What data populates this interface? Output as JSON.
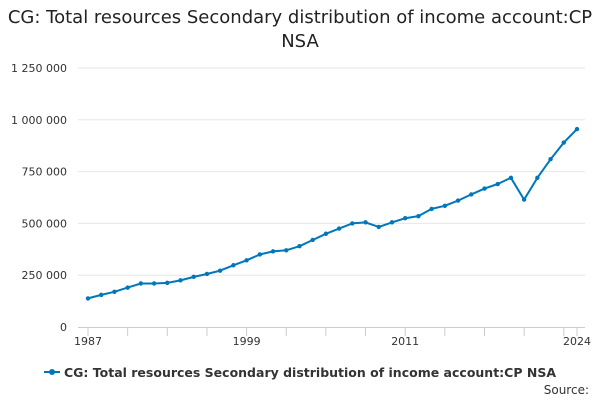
{
  "chart_data": {
    "type": "line",
    "title": "CG: Total resources Secondary distribution of income account:CP NSA",
    "xlabel": "",
    "ylabel": "",
    "x": [
      1987,
      1988,
      1989,
      1990,
      1991,
      1992,
      1993,
      1994,
      1995,
      1996,
      1997,
      1998,
      1999,
      2000,
      2001,
      2002,
      2003,
      2004,
      2005,
      2006,
      2007,
      2008,
      2009,
      2010,
      2011,
      2012,
      2013,
      2014,
      2015,
      2016,
      2017,
      2018,
      2019,
      2020,
      2021,
      2022,
      2023,
      2024
    ],
    "series": [
      {
        "name": "CG: Total resources Secondary distribution of income account:CP NSA",
        "values": [
          138000,
          155000,
          170000,
          190000,
          210000,
          210000,
          213000,
          225000,
          242000,
          256000,
          272000,
          298000,
          322000,
          350000,
          365000,
          370000,
          390000,
          420000,
          450000,
          475000,
          500000,
          505000,
          483000,
          505000,
          525000,
          535000,
          570000,
          585000,
          610000,
          640000,
          668000,
          690000,
          720000,
          615000,
          720000,
          810000,
          890000,
          955000
        ],
        "color": "#0077bb"
      }
    ],
    "ylim": [
      0,
      1250000
    ],
    "xlim": [
      1987,
      2024
    ],
    "y_ticks": [
      0,
      250000,
      500000,
      750000,
      1000000,
      1250000
    ],
    "y_tick_labels": [
      "0",
      "250 000",
      "500 000",
      "750 000",
      "1 000 000",
      "1 250 000"
    ],
    "x_tick_labels": [
      1987,
      1999,
      2011,
      2024
    ],
    "grid": "horizontal",
    "legend_position": "bottom"
  },
  "legend": {
    "label": "CG: Total resources Secondary distribution of income account:CP NSA"
  },
  "footer": {
    "source_label": "Source:"
  },
  "colors": {
    "line": "#0077bb",
    "grid": "#e6e6e6",
    "axis": "#cccccc"
  }
}
